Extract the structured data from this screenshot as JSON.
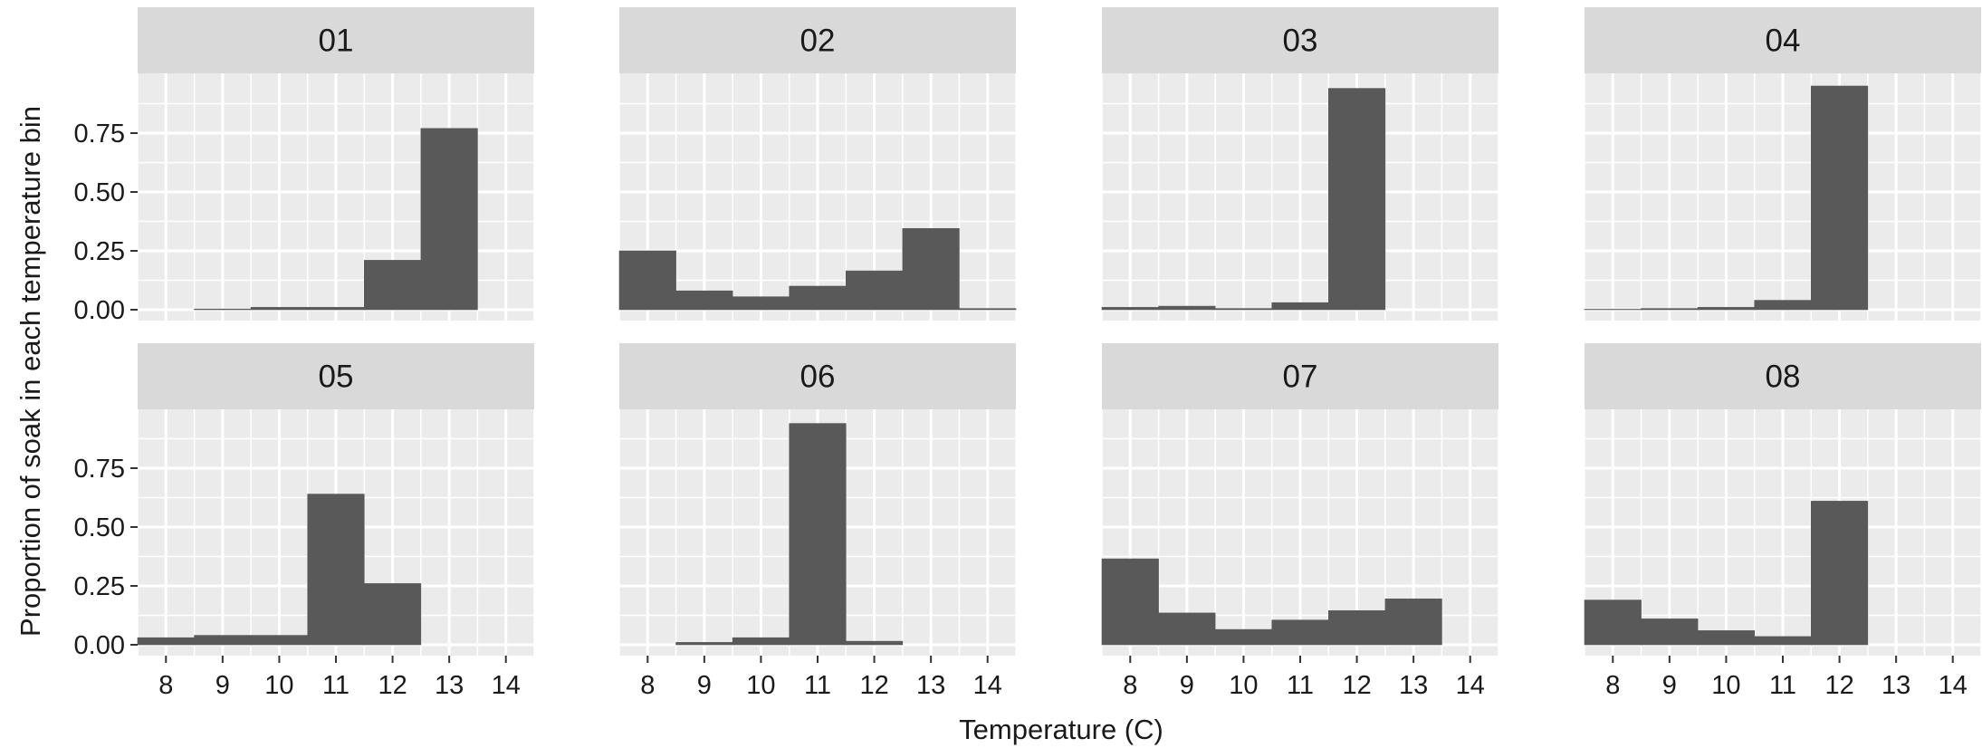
{
  "chart_data": {
    "type": "bar",
    "layout": "faceted histograms, 2 rows x 4 columns",
    "xlabel": "Temperature (C)",
    "ylabel": "Proportion of soak in each temperature bin",
    "x_ticks": [
      8,
      9,
      10,
      11,
      12,
      13,
      14
    ],
    "xlim": [
      7.5,
      14.5
    ],
    "y_ticks": [
      "0.00",
      "0.25",
      "0.50",
      "0.75"
    ],
    "ylim": [
      0,
      0.95
    ],
    "bin_width": 1,
    "bar_color": "#595959",
    "panel_bg": "#ebebeb",
    "strip_bg": "#d9d9d9",
    "grid": true,
    "facets": [
      {
        "label": "01",
        "bins": [
          8,
          9,
          10,
          11,
          12,
          13,
          14
        ],
        "values": [
          0,
          0.003,
          0.01,
          0.01,
          0.21,
          0.77,
          0
        ]
      },
      {
        "label": "02",
        "bins": [
          8,
          9,
          10,
          11,
          12,
          13,
          14
        ],
        "values": [
          0.25,
          0.08,
          0.055,
          0.1,
          0.165,
          0.345,
          0.005
        ]
      },
      {
        "label": "03",
        "bins": [
          8,
          9,
          10,
          11,
          12
        ],
        "values": [
          0.01,
          0.015,
          0.005,
          0.03,
          0.94
        ]
      },
      {
        "label": "04",
        "bins": [
          8,
          9,
          10,
          11,
          12
        ],
        "values": [
          0.002,
          0.005,
          0.01,
          0.04,
          0.95
        ]
      },
      {
        "label": "05",
        "bins": [
          8,
          9,
          10,
          11,
          12
        ],
        "values": [
          0.03,
          0.04,
          0.04,
          0.64,
          0.26
        ]
      },
      {
        "label": "06",
        "bins": [
          9,
          10,
          11,
          12
        ],
        "values": [
          0.01,
          0.03,
          0.94,
          0.015
        ]
      },
      {
        "label": "07",
        "bins": [
          8,
          9,
          10,
          11,
          12,
          13
        ],
        "values": [
          0.365,
          0.135,
          0.065,
          0.105,
          0.145,
          0.195
        ]
      },
      {
        "label": "08",
        "bins": [
          8,
          9,
          10,
          11,
          12
        ],
        "values": [
          0.19,
          0.11,
          0.06,
          0.035,
          0.61
        ]
      }
    ]
  }
}
